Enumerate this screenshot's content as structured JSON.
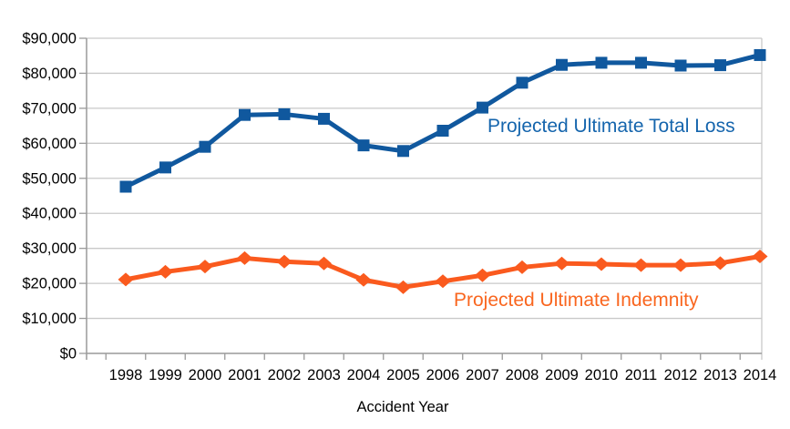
{
  "chart_data": {
    "type": "line",
    "title": "",
    "xlabel": "Accident Year",
    "ylabel": "",
    "categories": [
      "1998",
      "1999",
      "2000",
      "2001",
      "2002",
      "2003",
      "2004",
      "2005",
      "2006",
      "2007",
      "2008",
      "2009",
      "2010",
      "2011",
      "2012",
      "2013",
      "2014"
    ],
    "ylim": [
      0,
      90000
    ],
    "grid": "horizontal",
    "legend_position": "inline-labels-near-lines",
    "y_ticks": {
      "values": [
        0,
        10000,
        20000,
        30000,
        40000,
        50000,
        60000,
        70000,
        80000,
        90000
      ],
      "labels": [
        "$0",
        "$10,000",
        "$20,000",
        "$30,000",
        "$40,000",
        "$50,000",
        "$60,000",
        "$70,000",
        "$80,000",
        "$90,000"
      ]
    },
    "series": [
      {
        "name": "Projected Ultimate Total Loss",
        "marker": "square",
        "line_color": "#10589E",
        "label_color": "#1565AD",
        "values": [
          47600,
          53100,
          59000,
          68100,
          68300,
          67000,
          59400,
          57800,
          63600,
          70200,
          77300,
          82400,
          83000,
          83000,
          82200,
          82300,
          85200
        ]
      },
      {
        "name": "Projected Ultimate Indemnity",
        "marker": "diamond",
        "line_color": "#FA5A1E",
        "label_color": "#F9661F",
        "values": [
          21100,
          23300,
          24800,
          27200,
          26200,
          25700,
          21000,
          18900,
          20600,
          22300,
          24600,
          25700,
          25500,
          25200,
          25200,
          25800,
          27700
        ]
      }
    ]
  }
}
